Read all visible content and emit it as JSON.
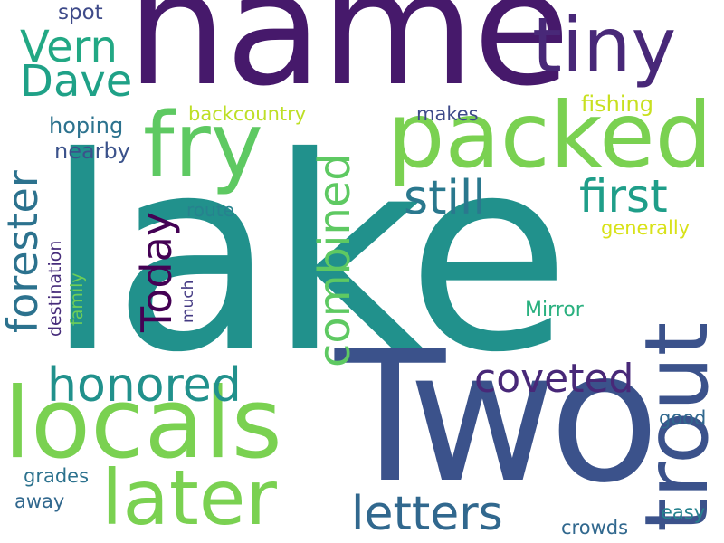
{
  "words": {
    "lake": {
      "text": "lake",
      "color": "#21918c"
    },
    "name": {
      "text": "name",
      "color": "#46196b"
    },
    "two": {
      "text": "Two",
      "color": "#3b528b"
    },
    "tiny": {
      "text": "tiny",
      "color": "#482878"
    },
    "packed": {
      "text": "packed",
      "color": "#7ad151"
    },
    "fry": {
      "text": "fry",
      "color": "#5ec962"
    },
    "locals": {
      "text": "locals",
      "color": "#7ad151"
    },
    "trout": {
      "text": "trout",
      "color": "#3b528b"
    },
    "later": {
      "text": "later",
      "color": "#7ad151"
    },
    "honored": {
      "text": "honored",
      "color": "#21918c"
    },
    "letters": {
      "text": "letters",
      "color": "#31688e"
    },
    "coveted": {
      "text": "coveted",
      "color": "#482878"
    },
    "first": {
      "text": "first",
      "color": "#1f9e89"
    },
    "still": {
      "text": "still",
      "color": "#2a788e"
    },
    "vern": {
      "text": "Vern",
      "color": "#22a884"
    },
    "dave": {
      "text": "Dave",
      "color": "#1fa187"
    },
    "forester": {
      "text": "forester",
      "color": "#2c728e"
    },
    "combined": {
      "text": "combined",
      "color": "#5ec962"
    },
    "today": {
      "text": "Today",
      "color": "#440154"
    },
    "spot": {
      "text": "spot",
      "color": "#3e4a89"
    },
    "hoping": {
      "text": "hoping",
      "color": "#2c728e"
    },
    "nearby": {
      "text": "nearby",
      "color": "#3b528b"
    },
    "backcountry": {
      "text": "backcountry",
      "color": "#bddf26"
    },
    "makes": {
      "text": "makes",
      "color": "#3e4a89"
    },
    "fishing": {
      "text": "fishing",
      "color": "#c8e020"
    },
    "generally": {
      "text": "generally",
      "color": "#d8e219"
    },
    "route": {
      "text": "route",
      "color": "#26828e"
    },
    "destination": {
      "text": "destination",
      "color": "#472d7b"
    },
    "family": {
      "text": "family",
      "color": "#6ece58"
    },
    "much": {
      "text": "much",
      "color": "#443a83"
    },
    "mirror": {
      "text": "Mirror",
      "color": "#2ab07f"
    },
    "good": {
      "text": "good",
      "color": "#31688e"
    },
    "easy": {
      "text": "easy",
      "color": "#26828e"
    },
    "crowds": {
      "text": "crowds",
      "color": "#31688e"
    },
    "grades": {
      "text": "grades",
      "color": "#2c728e"
    },
    "away": {
      "text": "away",
      "color": "#31688e"
    }
  }
}
